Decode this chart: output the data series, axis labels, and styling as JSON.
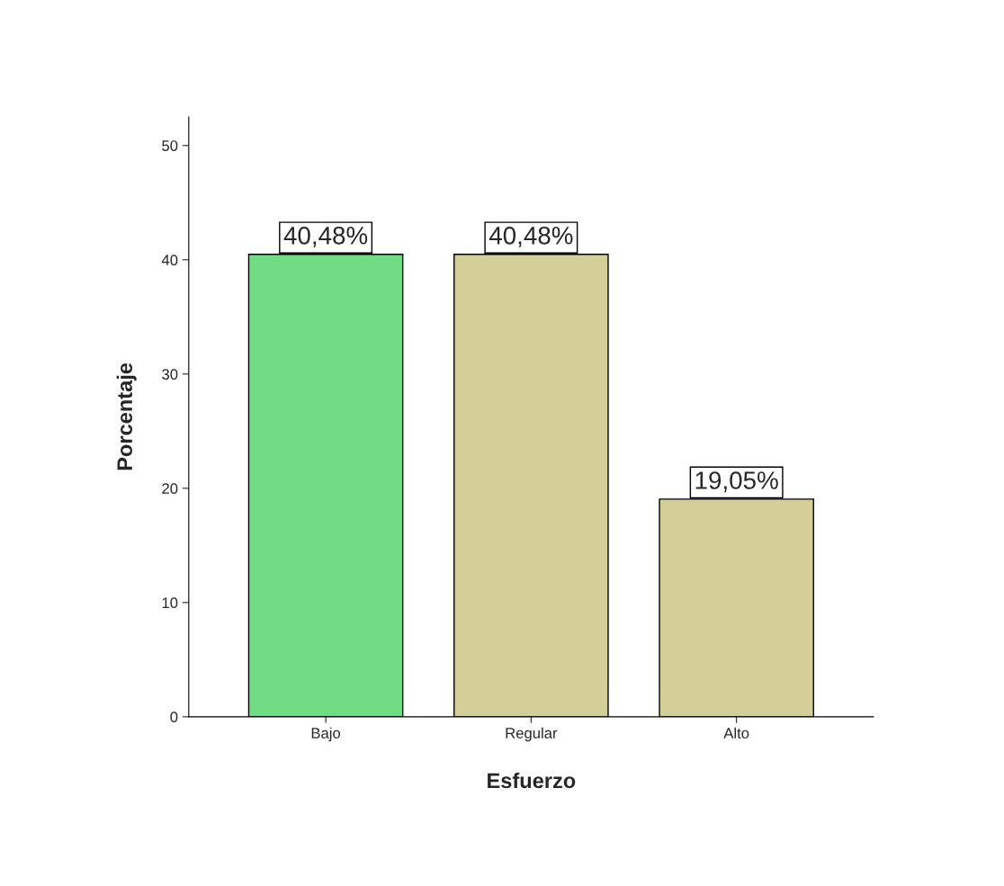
{
  "chart_data": {
    "type": "bar",
    "xlabel": "Esfuerzo",
    "ylabel": "Porcentaje",
    "categories": [
      "Bajo",
      "Regular",
      "Alto"
    ],
    "values": [
      40.48,
      40.48,
      19.05
    ],
    "colors": [
      "#70dc84",
      "#d4ce98",
      "#d4ce98"
    ],
    "value_labels": [
      "40,48%",
      "40,48%",
      "19,05%"
    ],
    "ylim": [
      0,
      52.5
    ],
    "yticks": [
      0,
      10,
      20,
      30,
      40,
      50
    ],
    "grid": false,
    "legend": false
  }
}
